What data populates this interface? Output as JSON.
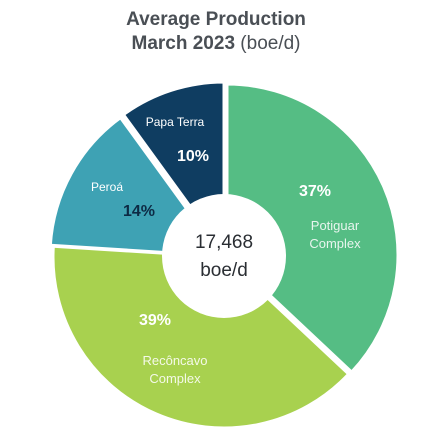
{
  "title_line1": "Average Production",
  "title_line2_bold": "March 2023",
  "title_line2_unit": " (boe/d)",
  "center": {
    "value": "17,468",
    "unit": "boe/d"
  },
  "chart_data": {
    "type": "pie",
    "title": "Average Production March 2023 (boe/d)",
    "total": "17,468 boe/d",
    "slices": [
      {
        "name": "Potiguar Complex",
        "label_lines": [
          "Potiguar",
          "Complex"
        ],
        "percent": 37,
        "percent_label": "37%",
        "color": "#55bd84"
      },
      {
        "name": "Recôncavo Complex",
        "label_lines": [
          "Recôncavo",
          "Complex"
        ],
        "percent": 39,
        "percent_label": "39%",
        "color": "#a8d14f"
      },
      {
        "name": "Peroá",
        "label_lines": [
          "Peroá"
        ],
        "percent": 14,
        "percent_label": "14%",
        "color": "#3ea2b4"
      },
      {
        "name": "Papa Terra",
        "label_lines": [
          "Papa Terra"
        ],
        "percent": 10,
        "percent_label": "10%",
        "color": "#0f3d61"
      }
    ]
  }
}
